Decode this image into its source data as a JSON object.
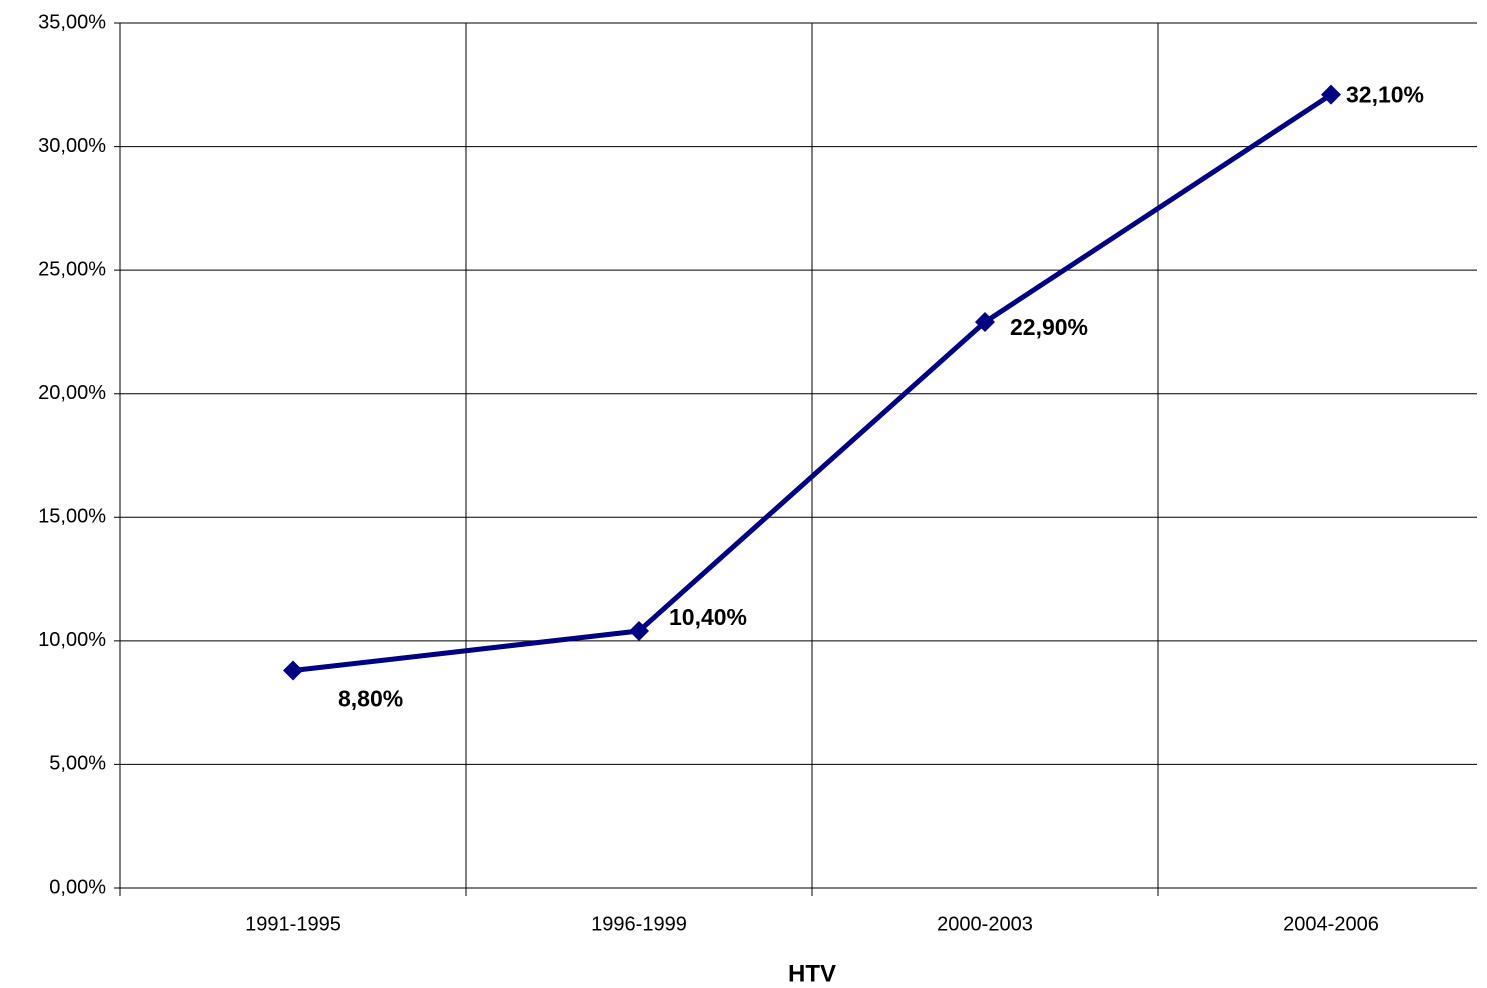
{
  "chart_data": {
    "type": "line",
    "x_label": "HTV",
    "categories": [
      "1991-1995",
      "1996-1999",
      "2000-2003",
      "2004-2006"
    ],
    "series": [
      {
        "color": "#000080",
        "values": [
          8.8,
          10.4,
          22.9,
          32.1
        ],
        "value_labels": [
          "8,80%",
          "10,40%",
          "22,90%",
          "32,10%"
        ]
      }
    ],
    "ylim": [
      0,
      35
    ],
    "yticks": [
      {
        "value": 0,
        "label": "0,00%"
      },
      {
        "value": 5,
        "label": "5,00%"
      },
      {
        "value": 10,
        "label": "10,00%"
      },
      {
        "value": 15,
        "label": "15,00%"
      },
      {
        "value": 20,
        "label": "20,00%"
      },
      {
        "value": 25,
        "label": "25,00%"
      },
      {
        "value": 30,
        "label": "30,00%"
      },
      {
        "value": 35,
        "label": "35,00%"
      }
    ],
    "grid": true
  }
}
